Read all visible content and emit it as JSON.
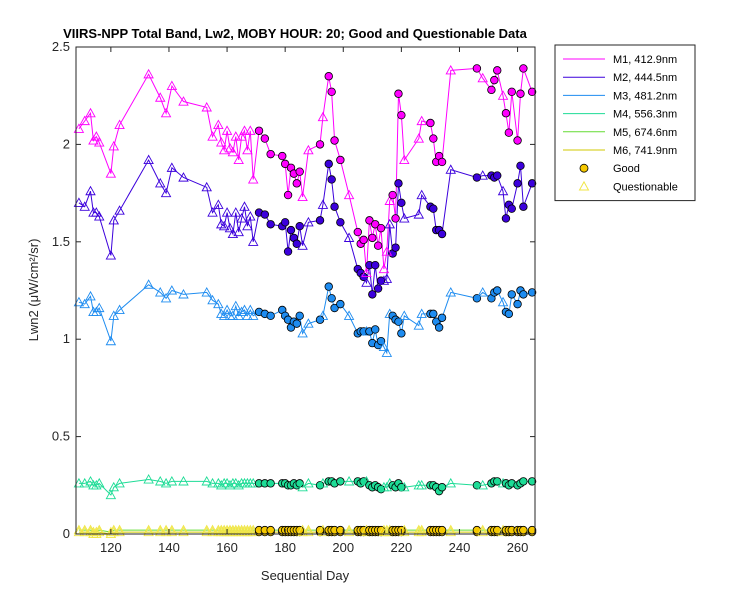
{
  "chart_data": {
    "type": "line",
    "title": "VIIRS-NPP Total Band, Lw2, MOBY HOUR: 20;  Good and Questionable Data",
    "xlabel": "Sequential Day",
    "ylabel": "Lwn2 (μW/cm²/sr)",
    "xlim": [
      108,
      266
    ],
    "ylim": [
      0,
      2.5
    ],
    "xticks": [
      120,
      140,
      160,
      180,
      200,
      220,
      240,
      260
    ],
    "yticks": [
      0,
      0.5,
      1,
      1.5,
      2,
      2.5
    ],
    "ytick_labels": [
      "0",
      "0.5",
      "1",
      "1.5",
      "2",
      "2.5"
    ],
    "grid": false,
    "legend_position": "outside-top-right",
    "x": [
      109,
      111,
      113,
      114,
      115,
      116,
      120,
      121,
      123,
      133,
      137,
      139,
      141,
      145,
      153,
      155,
      157,
      158,
      159,
      160,
      161,
      162,
      163,
      164,
      165,
      166,
      167,
      168,
      169,
      171,
      173,
      175,
      179,
      180,
      181,
      182,
      183,
      184,
      185,
      186,
      188,
      192,
      193,
      195,
      196,
      197,
      199,
      202,
      205,
      206,
      207,
      208,
      209,
      210,
      211,
      212,
      213,
      214,
      215,
      216,
      217,
      218,
      219,
      220,
      221,
      226,
      227,
      230,
      231,
      232,
      233,
      234,
      237,
      246,
      248,
      251,
      252,
      253,
      255,
      256,
      257,
      258,
      260,
      261,
      262,
      265
    ],
    "quality": [
      "q",
      "q",
      "q",
      "q",
      "q",
      "q",
      "q",
      "q",
      "q",
      "q",
      "q",
      "q",
      "q",
      "q",
      "q",
      "q",
      "q",
      "q",
      "q",
      "q",
      "q",
      "q",
      "q",
      "q",
      "q",
      "q",
      "q",
      "q",
      "q",
      "g",
      "g",
      "g",
      "g",
      "g",
      "g",
      "g",
      "g",
      "g",
      "g",
      "q",
      "q",
      "g",
      "q",
      "g",
      "g",
      "g",
      "g",
      "q",
      "g",
      "g",
      "g",
      "q",
      "g",
      "g",
      "g",
      "g",
      "g",
      "q",
      "q",
      "q",
      "g",
      "g",
      "g",
      "g",
      "q",
      "q",
      "q",
      "g",
      "g",
      "g",
      "g",
      "g",
      "q",
      "g",
      "q",
      "g",
      "g",
      "g",
      "q",
      "g",
      "g",
      "g",
      "g",
      "g",
      "g",
      "g"
    ],
    "series": [
      {
        "name": "M1, 412.9nm",
        "color": "#ff00ff",
        "values": [
          2.08,
          2.12,
          2.16,
          2.02,
          2.04,
          2.01,
          1.85,
          1.99,
          2.1,
          2.36,
          2.24,
          2.16,
          2.3,
          2.22,
          2.19,
          2.04,
          2.1,
          2.01,
          1.97,
          2.07,
          1.98,
          1.96,
          2.04,
          1.92,
          2.04,
          2.07,
          1.97,
          2.07,
          1.82,
          2.07,
          2.03,
          1.95,
          1.94,
          1.9,
          1.74,
          1.88,
          1.85,
          1.8,
          1.86,
          1.73,
          1.97,
          2.0,
          2.14,
          2.35,
          2.27,
          2.02,
          1.92,
          1.74,
          1.55,
          1.49,
          1.51,
          1.34,
          1.61,
          1.52,
          1.59,
          1.48,
          1.57,
          1.36,
          1.45,
          1.71,
          1.74,
          1.62,
          2.26,
          2.15,
          1.92,
          2.03,
          2.12,
          2.11,
          2.03,
          1.91,
          1.94,
          1.91,
          2.38,
          2.39,
          2.34,
          2.28,
          2.33,
          2.38,
          2.25,
          2.16,
          2.06,
          2.27,
          2.02,
          2.26,
          2.39,
          2.27
        ]
      },
      {
        "name": "M2, 444.5nm",
        "color": "#3c00dc",
        "values": [
          1.7,
          1.68,
          1.76,
          1.65,
          1.65,
          1.63,
          1.43,
          1.61,
          1.66,
          1.92,
          1.8,
          1.75,
          1.88,
          1.83,
          1.78,
          1.65,
          1.69,
          1.59,
          1.58,
          1.65,
          1.57,
          1.54,
          1.65,
          1.55,
          1.62,
          1.68,
          1.58,
          1.63,
          1.5,
          1.65,
          1.64,
          1.59,
          1.58,
          1.6,
          1.45,
          1.56,
          1.52,
          1.49,
          1.58,
          1.48,
          1.6,
          1.61,
          1.69,
          1.9,
          1.82,
          1.68,
          1.6,
          1.52,
          1.36,
          1.34,
          1.32,
          1.29,
          1.38,
          1.23,
          1.38,
          1.26,
          1.3,
          1.3,
          1.31,
          1.59,
          1.44,
          1.47,
          1.8,
          1.7,
          1.62,
          1.64,
          1.74,
          1.68,
          1.67,
          1.56,
          1.56,
          1.54,
          1.87,
          1.83,
          1.84,
          1.84,
          1.83,
          1.84,
          1.76,
          1.62,
          1.69,
          1.67,
          1.8,
          1.89,
          1.68,
          1.8
        ]
      },
      {
        "name": "M3, 481.2nm",
        "color": "#1e8cf0",
        "values": [
          1.19,
          1.18,
          1.22,
          1.14,
          1.14,
          1.16,
          0.99,
          1.12,
          1.15,
          1.28,
          1.24,
          1.21,
          1.25,
          1.23,
          1.24,
          1.2,
          1.18,
          1.13,
          1.12,
          1.15,
          1.12,
          1.12,
          1.17,
          1.12,
          1.14,
          1.15,
          1.12,
          1.15,
          1.12,
          1.14,
          1.13,
          1.12,
          1.15,
          1.12,
          1.1,
          1.06,
          1.09,
          1.08,
          1.12,
          1.03,
          1.08,
          1.1,
          1.12,
          1.27,
          1.21,
          1.16,
          1.18,
          1.12,
          1.03,
          1.04,
          1.04,
          1.04,
          1.04,
          0.98,
          1.05,
          0.97,
          0.99,
          0.96,
          0.93,
          1.13,
          1.12,
          1.1,
          1.09,
          1.03,
          1.12,
          1.07,
          1.13,
          1.13,
          1.13,
          1.09,
          1.06,
          1.11,
          1.24,
          1.21,
          1.24,
          1.21,
          1.24,
          1.25,
          1.19,
          1.14,
          1.13,
          1.23,
          1.18,
          1.25,
          1.23,
          1.24
        ]
      },
      {
        "name": "M4, 556.3nm",
        "color": "#1edc96",
        "values": [
          0.26,
          0.26,
          0.27,
          0.25,
          0.25,
          0.26,
          0.2,
          0.24,
          0.26,
          0.28,
          0.27,
          0.26,
          0.27,
          0.27,
          0.27,
          0.26,
          0.26,
          0.25,
          0.26,
          0.26,
          0.25,
          0.26,
          0.26,
          0.25,
          0.26,
          0.26,
          0.26,
          0.26,
          0.26,
          0.26,
          0.26,
          0.26,
          0.26,
          0.26,
          0.25,
          0.25,
          0.26,
          0.25,
          0.26,
          0.24,
          0.26,
          0.25,
          0.26,
          0.27,
          0.27,
          0.26,
          0.27,
          0.27,
          0.27,
          0.26,
          0.27,
          0.27,
          0.25,
          0.24,
          0.25,
          0.24,
          0.23,
          0.24,
          0.24,
          0.26,
          0.25,
          0.24,
          0.26,
          0.24,
          0.24,
          0.25,
          0.25,
          0.25,
          0.25,
          0.24,
          0.22,
          0.24,
          0.26,
          0.25,
          0.25,
          0.26,
          0.27,
          0.27,
          0.26,
          0.26,
          0.25,
          0.26,
          0.25,
          0.26,
          0.27,
          0.27
        ]
      },
      {
        "name": "M5, 674.6nm",
        "color": "#64dc32",
        "values": [
          0.02,
          0.02,
          0.02,
          0.01,
          0.01,
          0.02,
          0.01,
          0.02,
          0.02,
          0.02,
          0.02,
          0.02,
          0.02,
          0.02,
          0.02,
          0.02,
          0.02,
          0.02,
          0.02,
          0.02,
          0.02,
          0.02,
          0.02,
          0.02,
          0.02,
          0.02,
          0.02,
          0.02,
          0.02,
          0.02,
          0.02,
          0.02,
          0.02,
          0.02,
          0.02,
          0.02,
          0.02,
          0.02,
          0.02,
          0.02,
          0.02,
          0.02,
          0.02,
          0.02,
          0.02,
          0.02,
          0.02,
          0.02,
          0.02,
          0.02,
          0.02,
          0.02,
          0.02,
          0.02,
          0.02,
          0.02,
          0.02,
          0.02,
          0.02,
          0.02,
          0.02,
          0.02,
          0.02,
          0.02,
          0.02,
          0.02,
          0.02,
          0.02,
          0.02,
          0.02,
          0.02,
          0.02,
          0.02,
          0.02,
          0.02,
          0.02,
          0.02,
          0.02,
          0.02,
          0.02,
          0.02,
          0.02,
          0.02,
          0.02,
          0.02,
          0.02
        ]
      },
      {
        "name": "M6, 741.9nm",
        "color": "#d2c800",
        "values": [
          0.01,
          0.01,
          0.01,
          0.0,
          0.0,
          0.01,
          0.0,
          0.01,
          0.01,
          0.01,
          0.01,
          0.01,
          0.01,
          0.01,
          0.01,
          0.01,
          0.01,
          0.01,
          0.01,
          0.01,
          0.01,
          0.01,
          0.01,
          0.01,
          0.01,
          0.01,
          0.01,
          0.01,
          0.01,
          0.01,
          0.01,
          0.01,
          0.01,
          0.01,
          0.01,
          0.01,
          0.01,
          0.01,
          0.01,
          0.01,
          0.01,
          0.01,
          0.01,
          0.01,
          0.01,
          0.01,
          0.01,
          0.01,
          0.01,
          0.01,
          0.01,
          0.01,
          0.01,
          0.01,
          0.01,
          0.01,
          0.01,
          0.01,
          0.01,
          0.01,
          0.01,
          0.01,
          0.01,
          0.01,
          0.01,
          0.01,
          0.01,
          0.01,
          0.01,
          0.01,
          0.01,
          0.01,
          0.01,
          0.01,
          0.01,
          0.01,
          0.01,
          0.01,
          0.01,
          0.01,
          0.01,
          0.01,
          0.01,
          0.01,
          0.01,
          0.01
        ]
      }
    ],
    "markers": [
      {
        "name": "Good",
        "shape": "circle",
        "fill": "#f5c800",
        "stroke": "#000000"
      },
      {
        "name": "Questionable",
        "shape": "triangle",
        "fill": "none",
        "stroke": "#f0e646"
      }
    ]
  }
}
